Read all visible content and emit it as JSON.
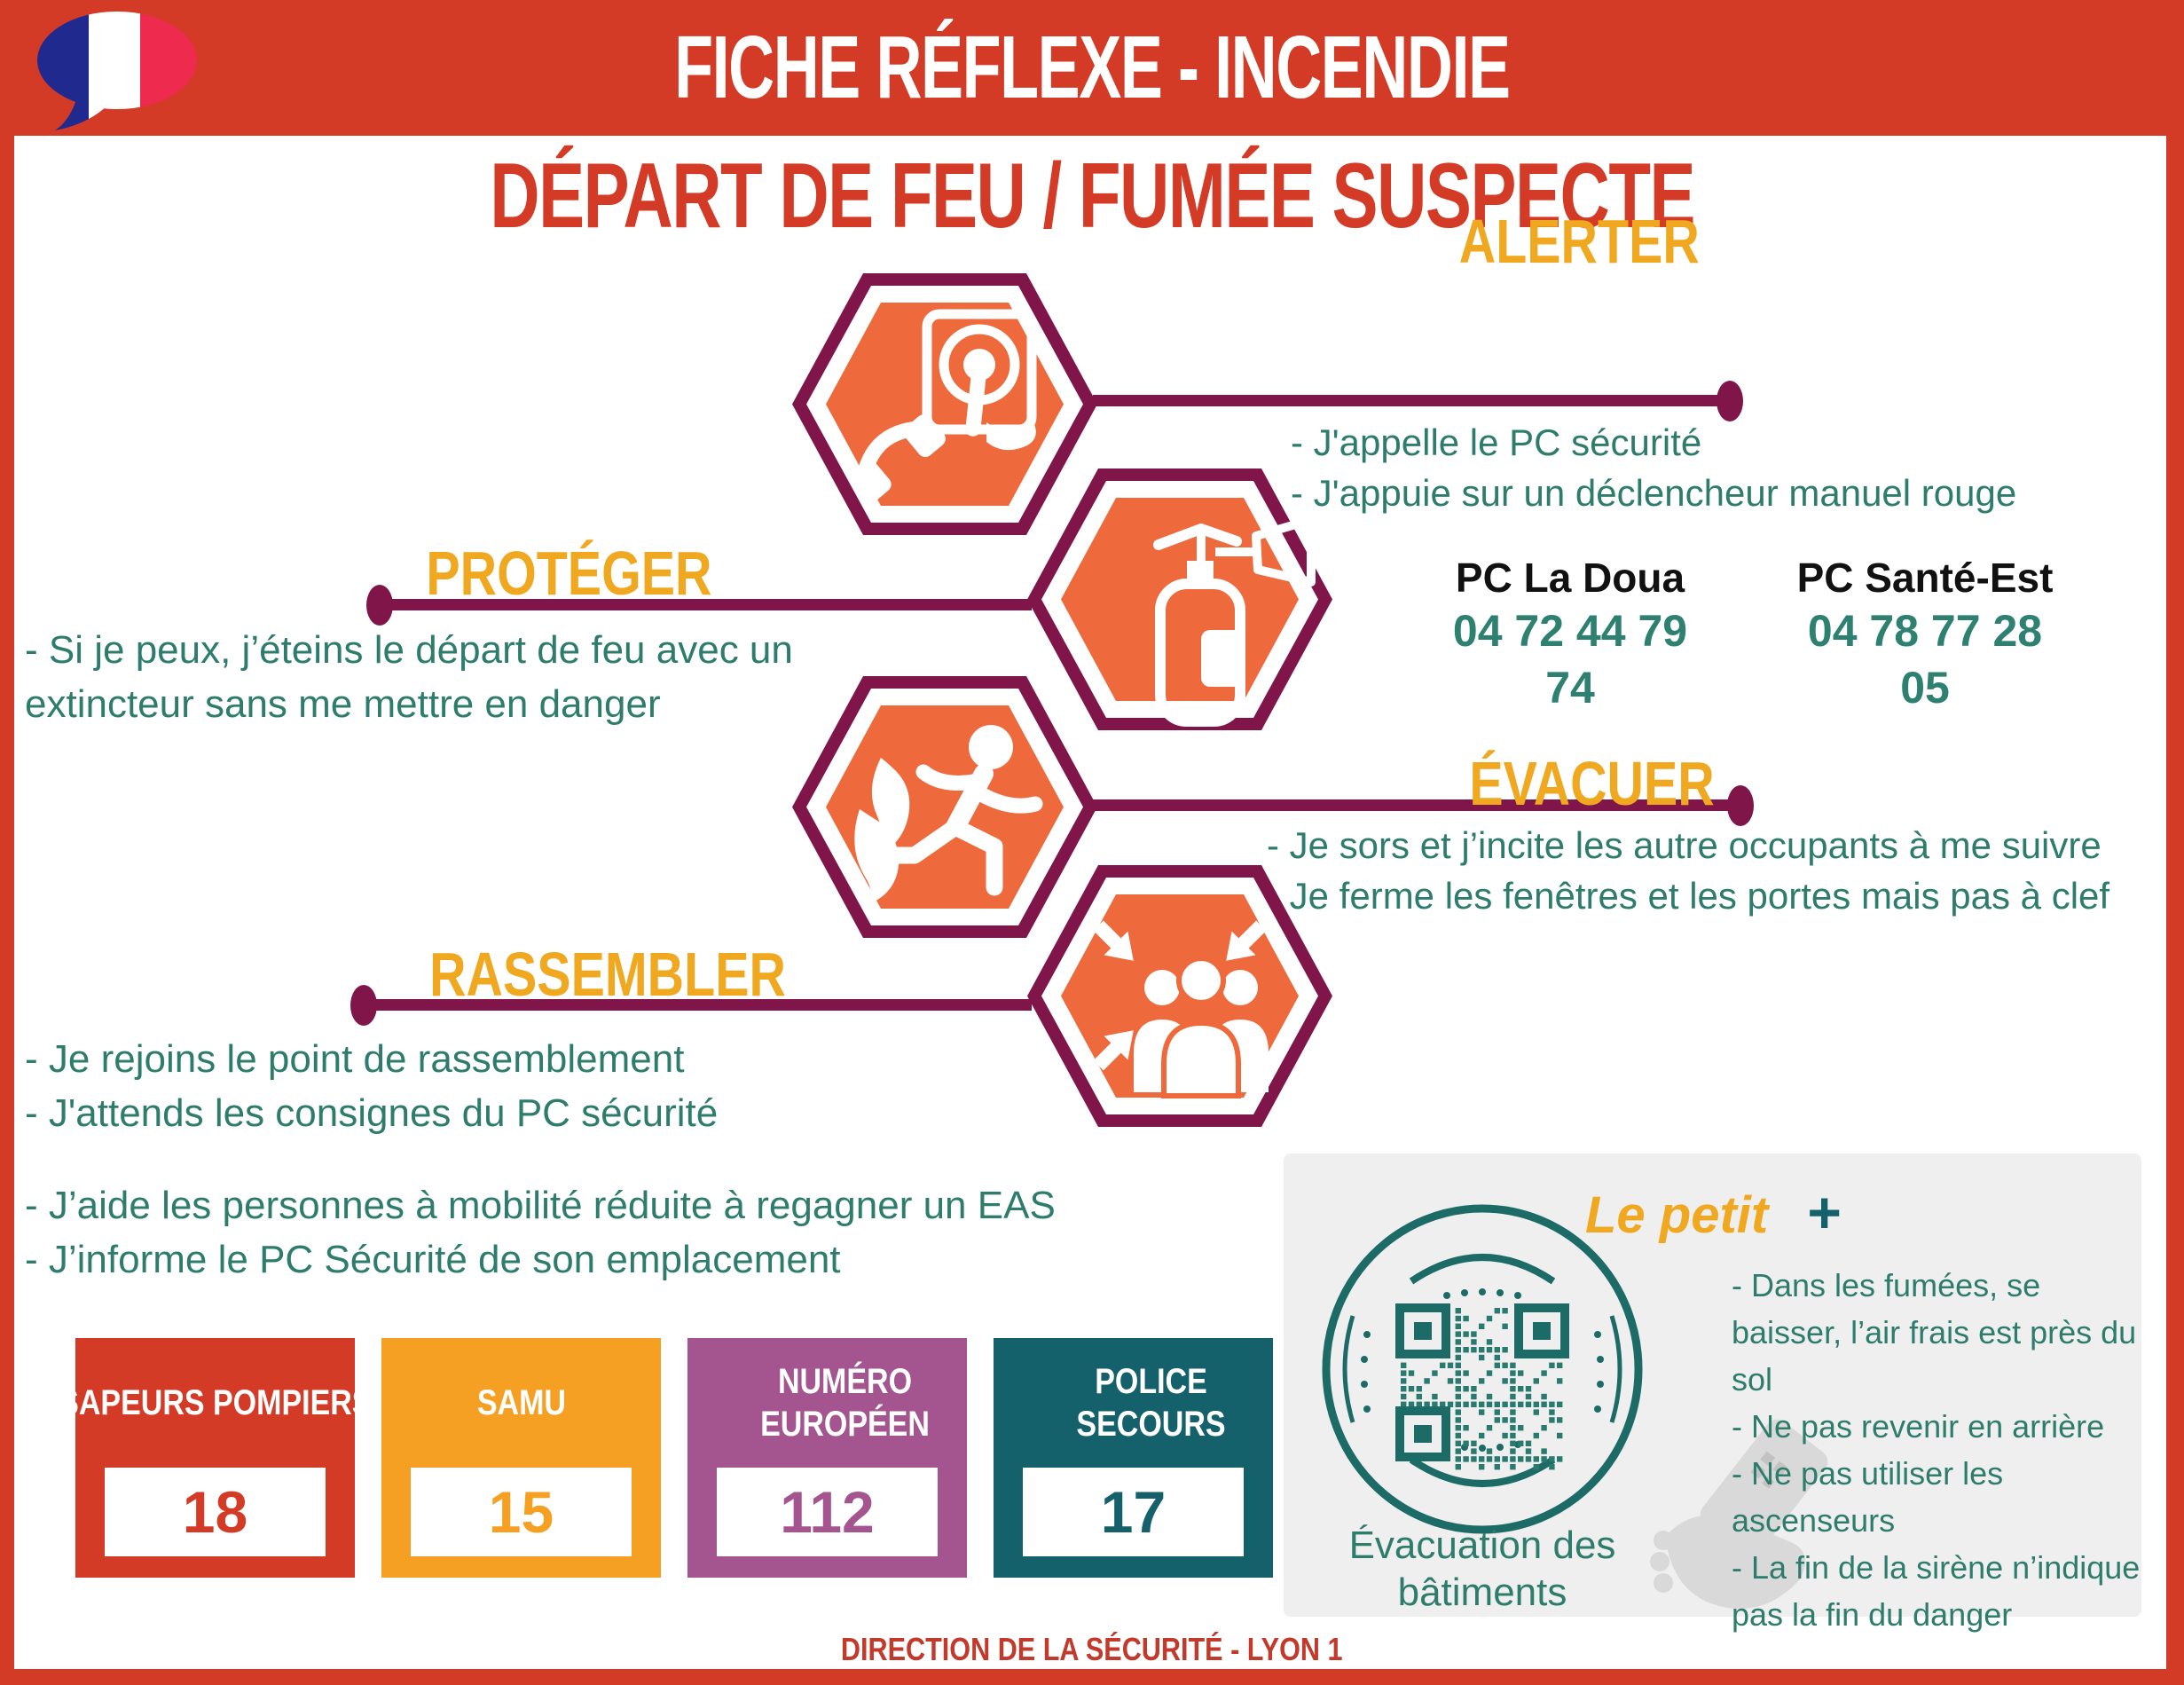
{
  "header": {
    "title": "FICHE RÉFLEXE - INCENDIE"
  },
  "subtitle": "DÉPART DE FEU  / FUMÉE SUSPECTE",
  "steps": {
    "alerter": {
      "label": "ALERTER",
      "items": [
        "- J'appelle le PC sécurité",
        "- J'appuie sur un déclencheur manuel rouge"
      ]
    },
    "proteger": {
      "label": "PROTÉGER",
      "text": "- Si je peux, j’éteins le départ de feu avec un extincteur sans me mettre en danger"
    },
    "evacuer": {
      "label": "ÉVACUER",
      "items": [
        "- Je sors et j’incite les autre occupants à me suivre",
        "- Je ferme les fenêtres et les portes mais pas à clef"
      ]
    },
    "rassembler": {
      "label": "RASSEMBLER",
      "items": [
        "- Je rejoins le point de rassemblement",
        "- J'attends les consignes du PC sécurité"
      ]
    },
    "pmr": {
      "items": [
        "- J’aide les personnes à mobilité réduite à regagner un EAS",
        "- J’informe le PC Sécurité de son emplacement"
      ]
    }
  },
  "contacts": [
    {
      "name": "PC La Doua",
      "phone": "04 72 44 79 74"
    },
    {
      "name": "PC Santé-Est",
      "phone": "04 78 77 28 05"
    }
  ],
  "emergency": [
    {
      "label": "SAPEURS POMPIERS",
      "number": "18",
      "color": "#d43b26"
    },
    {
      "label": "SAMU",
      "number": "15",
      "color": "#f5a023"
    },
    {
      "label": "NUMÉRO EUROPÉEN",
      "number": "112",
      "color": "#a4548e"
    },
    {
      "label": "POLICE SECOURS",
      "number": "17",
      "color": "#14606b"
    }
  ],
  "tips": {
    "title": "Le petit",
    "plus": "+",
    "items": [
      "- Dans les fumées, se baisser, l’air frais est près du sol",
      "- Ne pas revenir en arrière",
      "- Ne pas utiliser les ascenseurs",
      "- La fin de la sirène n’indique pas la fin du danger"
    ],
    "qr_caption": "Évacuation des bâtiments"
  },
  "footer": "DIRECTION DE LA SÉCURITÉ - LYON 1",
  "colors": {
    "primary_red": "#d43b26",
    "maroon": "#80154a",
    "hex_orange": "#ee6a3c",
    "gold": "#efa81f",
    "teal_text": "#2e7c6c",
    "teal_dark": "#14606b",
    "qr_teal": "#1d6b66",
    "panel_gray": "#efefef"
  }
}
